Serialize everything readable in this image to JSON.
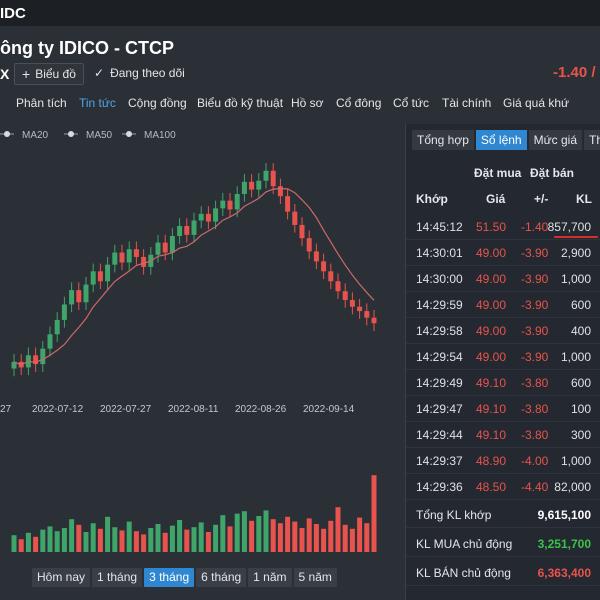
{
  "topbar": {
    "brand": "IDC"
  },
  "header": {
    "company": "ông ty IDICO - CTCP",
    "ticker": "X",
    "chart_button": "Biểu đồ",
    "follow_label": "Đang theo dõi",
    "price_change": "-1.40 /"
  },
  "nav": [
    "Phân tích",
    "Tin tức",
    "Cộng đồng",
    "Biểu đồ kỹ thuật",
    "Hồ sơ",
    "Cổ đông",
    "Cổ tức",
    "Tài chính",
    "Giá quá khứ"
  ],
  "nav_active": "Tin tức",
  "chart_data": {
    "type": "candlestick",
    "legend": [
      "MA20",
      "MA50",
      "MA100"
    ],
    "x_ticks": [
      "27",
      "2022-07-12",
      "2022-07-27",
      "2022-08-11",
      "2022-08-26",
      "2022-09-14"
    ],
    "close": [
      45.0,
      44.5,
      45.6,
      44.8,
      46.2,
      47.5,
      48.8,
      50.2,
      51.5,
      50.4,
      52.0,
      53.2,
      52.3,
      53.8,
      54.9,
      54.0,
      55.2,
      54.5,
      53.6,
      54.7,
      55.8,
      54.9,
      56.4,
      57.3,
      56.5,
      57.8,
      58.4,
      57.7,
      58.9,
      59.6,
      58.8,
      60.2,
      61.3,
      60.6,
      61.4,
      62.3,
      60.9,
      60.0,
      58.6,
      57.4,
      56.2,
      55.0,
      54.1,
      53.2,
      52.3,
      51.4,
      50.6,
      50.0,
      49.6,
      49.0,
      48.5
    ],
    "volume": [
      2.1,
      1.6,
      2.4,
      1.9,
      2.8,
      3.2,
      2.6,
      3.0,
      4.1,
      3.4,
      2.5,
      3.6,
      2.9,
      4.4,
      3.1,
      2.7,
      3.8,
      2.6,
      2.2,
      3.0,
      3.5,
      2.4,
      3.3,
      4.0,
      2.8,
      3.1,
      3.7,
      2.5,
      3.4,
      4.6,
      3.2,
      4.8,
      5.1,
      3.9,
      4.5,
      5.2,
      4.1,
      3.6,
      4.4,
      3.8,
      3.0,
      4.2,
      3.5,
      2.9,
      3.9,
      5.6,
      3.4,
      2.9,
      4.3,
      3.6,
      9.6
    ]
  },
  "range_buttons": [
    "Hôm nay",
    "1 tháng",
    "3 tháng",
    "6 tháng",
    "1 năm",
    "5 năm"
  ],
  "range_active": "3 tháng",
  "panel": {
    "tabs": [
      "Tổng hợp",
      "Sổ lệnh",
      "Mức giá",
      "Thố"
    ],
    "tab_active": "Sổ lệnh",
    "group_buy": "Đặt mua",
    "group_sell": "Đặt bán",
    "columns": {
      "time": "Khớp",
      "price": "Giá",
      "change": "+/-",
      "volume": "KL"
    },
    "rows": [
      {
        "time": "14:45:12",
        "price": "51.50",
        "change": "-1.40",
        "volume": "857,700"
      },
      {
        "time": "14:30:01",
        "price": "49.00",
        "change": "-3.90",
        "volume": "2,900"
      },
      {
        "time": "14:30:00",
        "price": "49.00",
        "change": "-3.90",
        "volume": "1,000"
      },
      {
        "time": "14:29:59",
        "price": "49.00",
        "change": "-3.90",
        "volume": "600"
      },
      {
        "time": "14:29:58",
        "price": "49.00",
        "change": "-3.90",
        "volume": "400"
      },
      {
        "time": "14:29:54",
        "price": "49.00",
        "change": "-3.90",
        "volume": "1,000"
      },
      {
        "time": "14:29:49",
        "price": "49.10",
        "change": "-3.80",
        "volume": "600"
      },
      {
        "time": "14:29:47",
        "price": "49.10",
        "change": "-3.80",
        "volume": "100"
      },
      {
        "time": "14:29:44",
        "price": "49.10",
        "change": "-3.80",
        "volume": "300"
      },
      {
        "time": "14:29:37",
        "price": "48.90",
        "change": "-4.00",
        "volume": "1,000"
      },
      {
        "time": "14:29:36",
        "price": "48.50",
        "change": "-4.40",
        "volume": "82,000"
      }
    ],
    "summary": [
      {
        "label": "Tổng KL khớp",
        "value": "9,615,100",
        "color": "#ffffff"
      },
      {
        "label": "KL MUA chủ động",
        "value": "3,251,700",
        "color": "#3cc24a"
      },
      {
        "label": "KL BÁN chủ động",
        "value": "6,363,400",
        "color": "#e8534d"
      }
    ]
  },
  "colors": {
    "up": "#3fa56a",
    "down": "#e8534d",
    "ma": "#c96a6a",
    "accent": "#2f86d1"
  }
}
